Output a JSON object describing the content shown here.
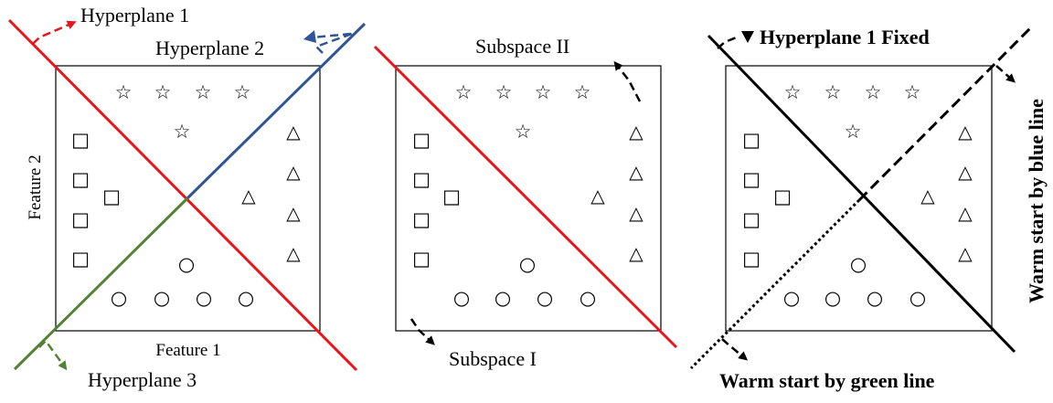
{
  "colors": {
    "red": "#e8161b",
    "blue": "#2f5597",
    "green": "#548235",
    "black": "#000000"
  },
  "panel1": {
    "hyperplane1_label": "Hyperplane 1",
    "hyperplane2_label": "Hyperplane 2",
    "hyperplane3_label": "Hyperplane 3",
    "xlabel": "Feature 1",
    "ylabel": "Feature 2"
  },
  "panel2": {
    "subspace2_label": "Subspace II",
    "subspace1_label": "Subspace I"
  },
  "panel3": {
    "fixed_label": "Hyperplane 1 Fixed",
    "blue_warm_label": "Warm start by blue line",
    "green_warm_label": "Warm start by green line"
  },
  "symbols": {
    "star": "☆",
    "square": "□",
    "triangle": "△",
    "circle": "○"
  }
}
